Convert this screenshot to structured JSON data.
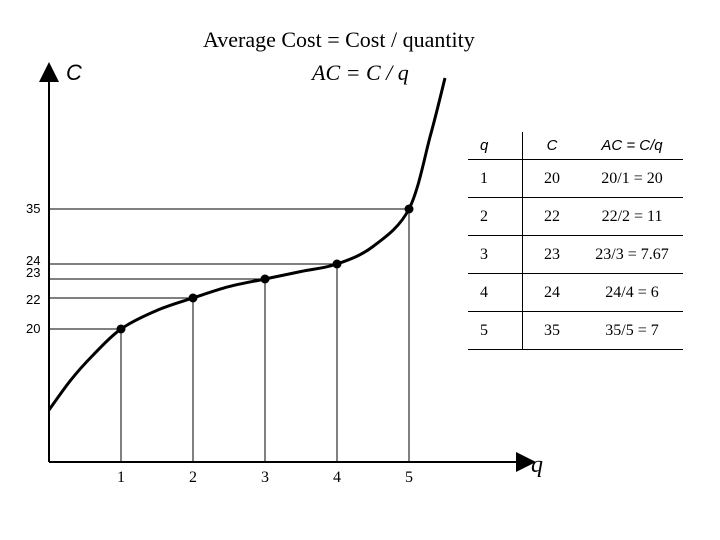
{
  "heading": {
    "line1": "Average Cost = Cost / quantity",
    "line2": "AC = C / q"
  },
  "chart_data": {
    "type": "line",
    "title": "Average Cost = Cost / quantity",
    "subtitle": "AC = C / q",
    "xlabel": "q",
    "ylabel": "C",
    "x_ticks": [
      "1",
      "2",
      "3",
      "4",
      "5"
    ],
    "y_ticks": [
      "20",
      "22",
      "23",
      "24",
      "35"
    ],
    "points": [
      {
        "q": 1,
        "C": 20
      },
      {
        "q": 2,
        "C": 22
      },
      {
        "q": 3,
        "C": 23
      },
      {
        "q": 4,
        "C": 24
      },
      {
        "q": 5,
        "C": 35
      }
    ],
    "curve": [
      {
        "q": 0,
        "C": 14
      },
      {
        "q": 0.3,
        "C": 16.2
      },
      {
        "q": 0.6,
        "C": 18
      },
      {
        "q": 1,
        "C": 20
      },
      {
        "q": 1.5,
        "C": 21.2
      },
      {
        "q": 2,
        "C": 22
      },
      {
        "q": 2.5,
        "C": 22.6
      },
      {
        "q": 3,
        "C": 23
      },
      {
        "q": 3.5,
        "C": 23.5
      },
      {
        "q": 4,
        "C": 24
      },
      {
        "q": 4.5,
        "C": 27.5
      },
      {
        "q": 5,
        "C": 35
      },
      {
        "q": 5.3,
        "C": 43.5
      },
      {
        "q": 5.5,
        "C": 50
      }
    ],
    "table": {
      "headers": [
        "q",
        "C",
        "AC = C/q"
      ],
      "rows": [
        [
          "1",
          "20",
          "20/1 = 20"
        ],
        [
          "2",
          "22",
          "22/2 = 11"
        ],
        [
          "3",
          "23",
          "23/3 = 7.67"
        ],
        [
          "4",
          "24",
          "24/4 = 6"
        ],
        [
          "5",
          "35",
          "35/5 = 7"
        ]
      ]
    }
  }
}
